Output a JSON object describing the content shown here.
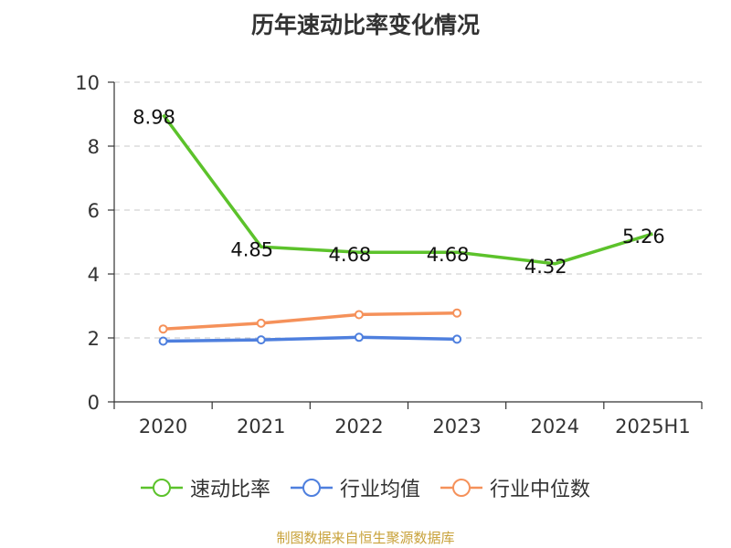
{
  "chart_data": {
    "type": "line",
    "title": "历年速动比率变化情况",
    "categories": [
      "2020",
      "2021",
      "2022",
      "2023",
      "2024",
      "2025H1"
    ],
    "ylim": [
      0,
      10
    ],
    "yticks": [
      0,
      2,
      4,
      6,
      8,
      10
    ],
    "grid": true,
    "legend_position": "bottom",
    "series": [
      {
        "name": "速动比率",
        "color": "#5cc22b",
        "values": [
          8.98,
          4.85,
          4.68,
          4.68,
          4.32,
          5.26
        ],
        "labels": [
          "8.98",
          "4.85",
          "4.68",
          "4.68",
          "4.32",
          "5.26"
        ],
        "markers": false
      },
      {
        "name": "行业均值",
        "color": "#4e7fde",
        "values": [
          1.9,
          1.94,
          2.02,
          1.96,
          null,
          null
        ],
        "markers": true
      },
      {
        "name": "行业中位数",
        "color": "#f5915a",
        "values": [
          2.28,
          2.46,
          2.73,
          2.78,
          null,
          null
        ],
        "markers": true
      }
    ]
  },
  "source": "制图数据来自恒生聚源数据库"
}
